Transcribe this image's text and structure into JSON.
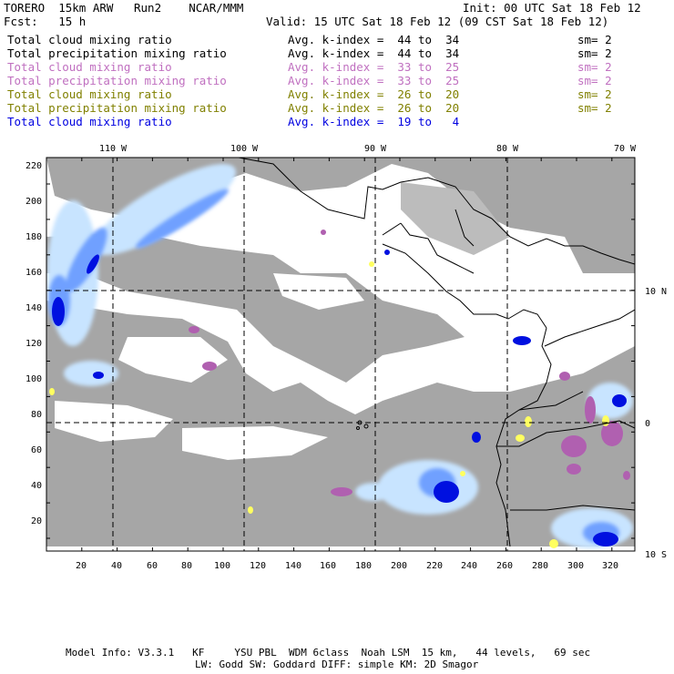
{
  "header": {
    "model": "TORERO  15km ARW   Run2    NCAR/MMM",
    "init": "Init: 00 UTC Sat 18 Feb 12",
    "fcst": "Fcst:   15 h",
    "valid": "Valid: 15 UTC Sat 18 Feb 12 (09 CST Sat 18 Feb 12)"
  },
  "legend": [
    {
      "field": "Total cloud mixing ratio",
      "range": "Avg. k-index =  44 to  34",
      "sm": "sm= 2",
      "color": "#000000"
    },
    {
      "field": "Total precipitation mixing ratio",
      "range": "Avg. k-index =  44 to  34",
      "sm": "sm= 2",
      "color": "#000000"
    },
    {
      "field": "Total cloud mixing ratio",
      "range": "Avg. k-index =  33 to  25",
      "sm": "sm= 2",
      "color": "#c070c0"
    },
    {
      "field": "Total precipitation mixing ratio",
      "range": "Avg. k-index =  33 to  25",
      "sm": "sm= 2",
      "color": "#c070c0"
    },
    {
      "field": "Total cloud mixing ratio",
      "range": "Avg. k-index =  26 to  20",
      "sm": "sm= 2",
      "color": "#808000"
    },
    {
      "field": "Total precipitation mixing ratio",
      "range": "Avg. k-index =  26 to  20",
      "sm": "sm= 2",
      "color": "#808000"
    },
    {
      "field": "Total cloud mixing ratio",
      "range": "Avg. k-index =  19 to   4",
      "sm": "",
      "color": "#0000e0"
    }
  ],
  "axes": {
    "top_lon": [
      "110 W",
      "100 W",
      "90 W",
      "80 W",
      "70 W"
    ],
    "right_lat": [
      "10 N",
      "0",
      "10 S"
    ],
    "x_ticks": [
      "20",
      "40",
      "60",
      "80",
      "100",
      "120",
      "140",
      "160",
      "180",
      "200",
      "220",
      "240",
      "260",
      "280",
      "300",
      "320"
    ],
    "y_ticks": [
      "220",
      "200",
      "180",
      "160",
      "140",
      "120",
      "100",
      "80",
      "60",
      "40",
      "20"
    ]
  },
  "footer": {
    "line1": "Model Info: V3.3.1   KF     YSU PBL  WDM 6class  Noah LSM  15 km,   44 levels,   69 sec",
    "line2": "LW: Godd SW: Goddard DIFF: simple KM: 2D Smagor"
  },
  "colors": {
    "cloud_gray": "#a6a6a6",
    "light_blue": "#c8e4ff",
    "mid_blue": "#6fa0ff",
    "deep_blue": "#0010e0",
    "purple": "#b060b0",
    "yellow": "#ffff60"
  }
}
